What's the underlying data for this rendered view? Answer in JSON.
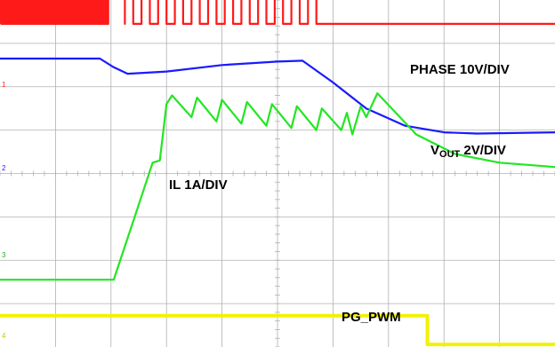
{
  "chart_data": {
    "type": "line",
    "title": "",
    "xlabel": "",
    "ylabel": "",
    "grid": true,
    "grid_divisions": {
      "x": 10,
      "y": 8
    },
    "background": "#ffffff",
    "grid_color": "#b0b0b0",
    "channel_markers": [
      "1",
      "2",
      "3",
      "4"
    ],
    "series": [
      {
        "name": "PHASE 10V/DIV",
        "color": "#ff1a1a",
        "label": {
          "main": "PHASE 10V/DIV"
        },
        "pattern": {
          "segments": [
            {
              "type": "pulses",
              "from": 0.0,
              "to": 1.95,
              "period": 0.055,
              "duty": 0.45,
              "level_low": 7.45,
              "level_high": 8.6,
              "noisy": true
            },
            {
              "type": "square",
              "from": 1.95,
              "to": 2.25,
              "period": 0.3,
              "duty": 1.0,
              "level_low": 7.45,
              "level_high": 8.6
            },
            {
              "type": "square",
              "from": 2.25,
              "to": 5.85,
              "period": 0.3,
              "duty": 0.5,
              "level_low": 7.45,
              "level_high": 8.6
            },
            {
              "type": "flat",
              "from": 5.85,
              "to": 10.0,
              "level": 7.45
            }
          ]
        }
      },
      {
        "name": "VOUT 2V/DIV",
        "color": "#1a1aff",
        "label": {
          "main": "V",
          "sub": "OUT",
          "rest": " 2V/DIV"
        },
        "points": [
          [
            0.0,
            6.65
          ],
          [
            1.8,
            6.65
          ],
          [
            2.05,
            6.45
          ],
          [
            2.3,
            6.3
          ],
          [
            3.0,
            6.35
          ],
          [
            4.0,
            6.5
          ],
          [
            5.0,
            6.58
          ],
          [
            5.45,
            6.6
          ],
          [
            6.0,
            6.1
          ],
          [
            6.6,
            5.5
          ],
          [
            7.3,
            5.1
          ],
          [
            8.0,
            4.95
          ],
          [
            8.6,
            4.92
          ],
          [
            10.0,
            4.95
          ]
        ]
      },
      {
        "name": "IL 1A/DIV",
        "color": "#22e622",
        "label": {
          "main": "IL 1A/DIV"
        },
        "points": [
          [
            0.0,
            1.55
          ],
          [
            2.05,
            1.55
          ],
          [
            2.4,
            2.9
          ],
          [
            2.75,
            4.25
          ],
          [
            2.88,
            4.3
          ],
          [
            3.0,
            5.6
          ],
          [
            3.1,
            5.8
          ],
          [
            3.45,
            5.3
          ],
          [
            3.55,
            5.75
          ],
          [
            3.9,
            5.2
          ],
          [
            4.0,
            5.7
          ],
          [
            4.35,
            5.15
          ],
          [
            4.45,
            5.65
          ],
          [
            4.8,
            5.1
          ],
          [
            4.9,
            5.6
          ],
          [
            5.25,
            5.05
          ],
          [
            5.35,
            5.55
          ],
          [
            5.7,
            5.0
          ],
          [
            5.8,
            5.5
          ],
          [
            6.15,
            5.0
          ],
          [
            6.25,
            5.4
          ],
          [
            6.35,
            4.9
          ],
          [
            6.5,
            5.55
          ],
          [
            6.6,
            5.3
          ],
          [
            6.8,
            5.85
          ],
          [
            7.5,
            4.9
          ],
          [
            8.2,
            4.45
          ],
          [
            9.0,
            4.25
          ],
          [
            10.0,
            4.15
          ]
        ]
      },
      {
        "name": "PG_PWM",
        "color": "#f2f200",
        "label": {
          "main": "PG_PWM"
        },
        "points": [
          [
            0.0,
            0.72
          ],
          [
            7.7,
            0.72
          ],
          [
            7.7,
            0.06
          ],
          [
            10.0,
            0.06
          ]
        ]
      }
    ]
  }
}
